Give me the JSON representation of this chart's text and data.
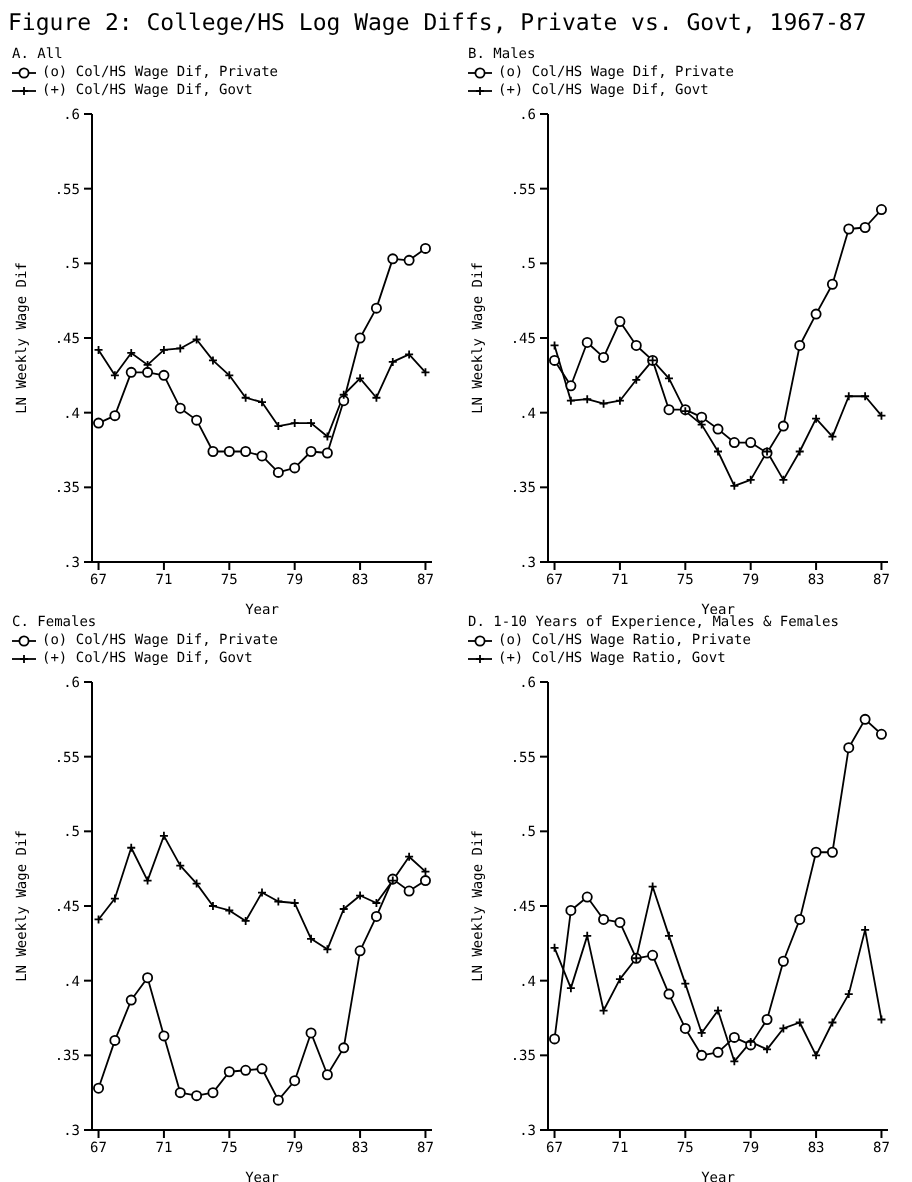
{
  "chart_data": [
    {
      "type": "line",
      "title": "Figure 2: College/HS Log Wage Diffs, Private vs. Govt, 1967-87",
      "subtitle": "A. All",
      "xlabel": "Year",
      "ylabel": "LN Weekly Wage Dif",
      "legend": "top left",
      "x": [
        1967,
        1968,
        1969,
        1970,
        1971,
        1972,
        1973,
        1974,
        1975,
        1976,
        1977,
        1978,
        1979,
        1980,
        1981,
        1982,
        1983,
        1984,
        1985,
        1986,
        1987
      ],
      "xlim": [
        1966.6,
        1987.4
      ],
      "xticks": [
        {
          "value": 1967,
          "label": "67"
        },
        {
          "value": 1971,
          "label": "71"
        },
        {
          "value": 1975,
          "label": "75"
        },
        {
          "value": 1979,
          "label": "79"
        },
        {
          "value": 1983,
          "label": "83"
        },
        {
          "value": 1987,
          "label": "87"
        }
      ],
      "ylim": [
        0.3,
        0.6
      ],
      "yticks": [
        {
          "value": 0.3,
          "label": ".3"
        },
        {
          "value": 0.35,
          "label": ".35"
        },
        {
          "value": 0.4,
          "label": ".4"
        },
        {
          "value": 0.45,
          "label": ".45"
        },
        {
          "value": 0.5,
          "label": ".5"
        },
        {
          "value": 0.55,
          "label": ".55"
        },
        {
          "value": 0.6,
          "label": ".6"
        }
      ],
      "series": [
        {
          "name": "(o) Col/HS Wage Dif, Private",
          "color": "#000000",
          "marker": "circle",
          "values": [
            0.393,
            0.398,
            0.427,
            0.427,
            0.425,
            0.403,
            0.395,
            0.374,
            0.374,
            0.374,
            0.371,
            0.36,
            0.363,
            0.374,
            0.373,
            0.408,
            0.45,
            0.47,
            0.503,
            0.502,
            0.51
          ]
        },
        {
          "name": "(+) Col/HS Wage Dif, Govt",
          "color": "#000000",
          "marker": "cross",
          "values": [
            0.442,
            0.425,
            0.44,
            0.432,
            0.442,
            0.443,
            0.449,
            0.435,
            0.425,
            0.41,
            0.407,
            0.391,
            0.393,
            0.393,
            0.384,
            0.412,
            0.423,
            0.41,
            0.434,
            0.439,
            0.427
          ]
        }
      ]
    },
    {
      "type": "line",
      "title": "B. Males",
      "xlabel": "Year",
      "ylabel": "LN Weekly Wage Dif",
      "legend": "top left",
      "x": [
        1967,
        1968,
        1969,
        1970,
        1971,
        1972,
        1973,
        1974,
        1975,
        1976,
        1977,
        1978,
        1979,
        1980,
        1981,
        1982,
        1983,
        1984,
        1985,
        1986,
        1987
      ],
      "xlim": [
        1966.6,
        1987.4
      ],
      "xticks": [
        {
          "value": 1967,
          "label": "67"
        },
        {
          "value": 1971,
          "label": "71"
        },
        {
          "value": 1975,
          "label": "75"
        },
        {
          "value": 1979,
          "label": "79"
        },
        {
          "value": 1983,
          "label": "83"
        },
        {
          "value": 1987,
          "label": "87"
        }
      ],
      "ylim": [
        0.3,
        0.6
      ],
      "yticks": [
        {
          "value": 0.3,
          "label": ".3"
        },
        {
          "value": 0.35,
          "label": ".35"
        },
        {
          "value": 0.4,
          "label": ".4"
        },
        {
          "value": 0.45,
          "label": ".45"
        },
        {
          "value": 0.5,
          "label": ".5"
        },
        {
          "value": 0.55,
          "label": ".55"
        },
        {
          "value": 0.6,
          "label": ".6"
        }
      ],
      "series": [
        {
          "name": "(o) Col/HS Wage Dif, Private",
          "color": "#000000",
          "marker": "circle",
          "values": [
            0.435,
            0.418,
            0.447,
            0.437,
            0.461,
            0.445,
            0.435,
            0.402,
            0.402,
            0.397,
            0.389,
            0.38,
            0.38,
            0.373,
            0.391,
            0.445,
            0.466,
            0.486,
            0.523,
            0.524,
            0.536
          ]
        },
        {
          "name": "(+) Col/HS Wage Dif, Govt",
          "color": "#000000",
          "marker": "cross",
          "values": [
            0.445,
            0.408,
            0.409,
            0.406,
            0.408,
            0.422,
            0.435,
            0.423,
            0.401,
            0.392,
            0.374,
            0.351,
            0.355,
            0.374,
            0.355,
            0.374,
            0.396,
            0.384,
            0.411,
            0.411,
            0.398
          ]
        }
      ]
    },
    {
      "type": "line",
      "title": "C. Females",
      "xlabel": "Year",
      "ylabel": "LN Weekly Wage Dif",
      "legend": "top left",
      "x": [
        1967,
        1968,
        1969,
        1970,
        1971,
        1972,
        1973,
        1974,
        1975,
        1976,
        1977,
        1978,
        1979,
        1980,
        1981,
        1982,
        1983,
        1984,
        1985,
        1986,
        1987
      ],
      "xlim": [
        1966.6,
        1987.4
      ],
      "xticks": [
        {
          "value": 1967,
          "label": "67"
        },
        {
          "value": 1971,
          "label": "71"
        },
        {
          "value": 1975,
          "label": "75"
        },
        {
          "value": 1979,
          "label": "79"
        },
        {
          "value": 1983,
          "label": "83"
        },
        {
          "value": 1987,
          "label": "87"
        }
      ],
      "ylim": [
        0.3,
        0.6
      ],
      "yticks": [
        {
          "value": 0.3,
          "label": ".3"
        },
        {
          "value": 0.35,
          "label": ".35"
        },
        {
          "value": 0.4,
          "label": ".4"
        },
        {
          "value": 0.45,
          "label": ".45"
        },
        {
          "value": 0.5,
          "label": ".5"
        },
        {
          "value": 0.55,
          "label": ".55"
        },
        {
          "value": 0.6,
          "label": ".6"
        }
      ],
      "series": [
        {
          "name": "(o) Col/HS Wage Dif, Private",
          "color": "#000000",
          "marker": "circle",
          "values": [
            0.328,
            0.36,
            0.387,
            0.402,
            0.363,
            0.325,
            0.323,
            0.325,
            0.339,
            0.34,
            0.341,
            0.32,
            0.333,
            0.365,
            0.337,
            0.355,
            0.42,
            0.443,
            0.468,
            0.46,
            0.467
          ]
        },
        {
          "name": "(+) Col/HS Wage Dif, Govt",
          "color": "#000000",
          "marker": "cross",
          "values": [
            0.441,
            0.455,
            0.489,
            0.467,
            0.497,
            0.477,
            0.465,
            0.45,
            0.447,
            0.44,
            0.459,
            0.453,
            0.452,
            0.428,
            0.421,
            0.448,
            0.457,
            0.452,
            0.467,
            0.483,
            0.473
          ]
        }
      ]
    },
    {
      "type": "line",
      "title": "D. 1-10 Years of Experience, Males & Females",
      "xlabel": "Year",
      "ylabel": "LN Weekly Wage Dif",
      "legend": "top left",
      "x": [
        1967,
        1968,
        1969,
        1970,
        1971,
        1972,
        1973,
        1974,
        1975,
        1976,
        1977,
        1978,
        1979,
        1980,
        1981,
        1982,
        1983,
        1984,
        1985,
        1986,
        1987
      ],
      "xlim": [
        1966.6,
        1987.4
      ],
      "xticks": [
        {
          "value": 1967,
          "label": "67"
        },
        {
          "value": 1971,
          "label": "71"
        },
        {
          "value": 1975,
          "label": "75"
        },
        {
          "value": 1979,
          "label": "79"
        },
        {
          "value": 1983,
          "label": "83"
        },
        {
          "value": 1987,
          "label": "87"
        }
      ],
      "ylim": [
        0.3,
        0.6
      ],
      "yticks": [
        {
          "value": 0.3,
          "label": ".3"
        },
        {
          "value": 0.35,
          "label": ".35"
        },
        {
          "value": 0.4,
          "label": ".4"
        },
        {
          "value": 0.45,
          "label": ".45"
        },
        {
          "value": 0.5,
          "label": ".5"
        },
        {
          "value": 0.55,
          "label": ".55"
        },
        {
          "value": 0.6,
          "label": ".6"
        }
      ],
      "series": [
        {
          "name": "(o) Col/HS Wage Ratio, Private",
          "color": "#000000",
          "marker": "circle",
          "values": [
            0.361,
            0.447,
            0.456,
            0.441,
            0.439,
            0.415,
            0.417,
            0.391,
            0.368,
            0.35,
            0.352,
            0.362,
            0.357,
            0.374,
            0.413,
            0.441,
            0.486,
            0.486,
            0.556,
            0.575,
            0.565
          ]
        },
        {
          "name": "(+) Col/HS Wage Ratio, Govt",
          "color": "#000000",
          "marker": "cross",
          "values": [
            0.422,
            0.395,
            0.43,
            0.38,
            0.401,
            0.415,
            0.463,
            0.43,
            0.398,
            0.365,
            0.38,
            0.346,
            0.359,
            0.354,
            0.368,
            0.372,
            0.35,
            0.372,
            0.391,
            0.434,
            0.374
          ]
        }
      ]
    }
  ]
}
